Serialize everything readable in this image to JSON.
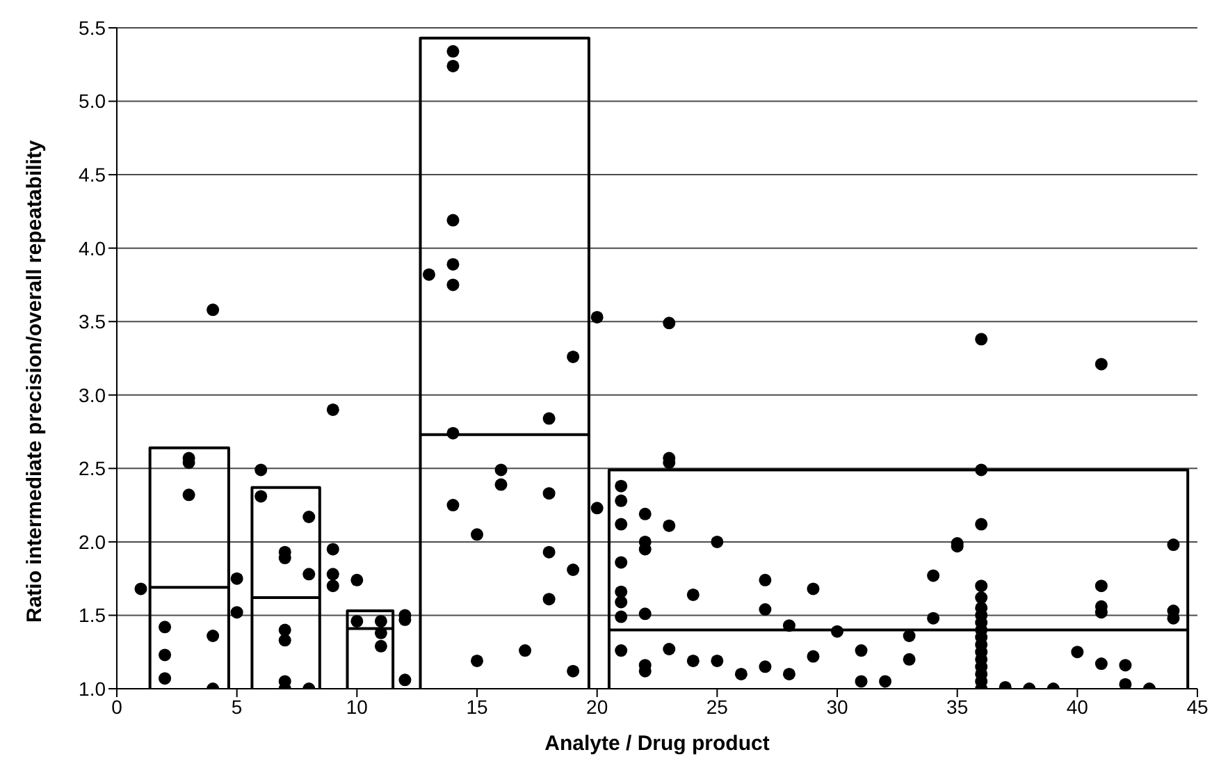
{
  "chart_data": {
    "type": "scatter",
    "xlabel": "Analyte / Drug product",
    "ylabel": "Ratio intermediate precision/overall repeatability",
    "xlim": [
      0,
      45
    ],
    "xticks": [
      0,
      5,
      10,
      15,
      20,
      25,
      30,
      35,
      40,
      45
    ],
    "ylim": [
      1.0,
      5.5
    ],
    "yticks": [
      {
        "value": 1.0,
        "label": "1.0"
      },
      {
        "value": 1.5,
        "label": "1.5"
      },
      {
        "value": 2.0,
        "label": "2.0"
      },
      {
        "value": 2.5,
        "label": "2.5"
      },
      {
        "value": 3.0,
        "label": "3.0"
      },
      {
        "value": 3.5,
        "label": "3.5"
      },
      {
        "value": 4.0,
        "label": "4.0"
      },
      {
        "value": 4.5,
        "label": "4.5"
      },
      {
        "value": 5.0,
        "label": "5.0"
      },
      {
        "value": 5.5,
        "label": "5.5"
      }
    ],
    "grid": "y",
    "series": [
      {
        "type": "scatter",
        "marker": "circle",
        "color": "#000000",
        "x": [
          1,
          2,
          2,
          2,
          3,
          3,
          3,
          4,
          4,
          4,
          5,
          5,
          6,
          6,
          7,
          7,
          7,
          7,
          7,
          7,
          8,
          8,
          8,
          9,
          9,
          9,
          9,
          10,
          10,
          11,
          11,
          11,
          12,
          12,
          12,
          13,
          14,
          14,
          14,
          14,
          14,
          14,
          14,
          15,
          15,
          16,
          16,
          17,
          18,
          18,
          18,
          18,
          19,
          19,
          19,
          20,
          20,
          21,
          21,
          21,
          21,
          21,
          21,
          21,
          21,
          22,
          22,
          22,
          22,
          22,
          22,
          23,
          23,
          23,
          23,
          23,
          24,
          24,
          25,
          25,
          26,
          27,
          27,
          27,
          28,
          28,
          29,
          29,
          30,
          31,
          31,
          32,
          33,
          33,
          34,
          34,
          35,
          35,
          36,
          36,
          36,
          36,
          36,
          36,
          36,
          36,
          36,
          36,
          36,
          36,
          36,
          36,
          36,
          36,
          36,
          37,
          38,
          39,
          40,
          41,
          41,
          41,
          41,
          41,
          42,
          42,
          43,
          44,
          44,
          44
        ],
        "values": [
          1.68,
          1.42,
          1.23,
          1.07,
          2.57,
          2.54,
          2.32,
          3.58,
          1.36,
          1.0,
          1.75,
          1.52,
          2.49,
          2.31,
          1.93,
          1.89,
          1.4,
          1.33,
          1.05,
          1.0,
          2.17,
          1.78,
          1.0,
          2.9,
          1.95,
          1.78,
          1.7,
          1.74,
          1.46,
          1.46,
          1.38,
          1.29,
          1.5,
          1.47,
          1.06,
          3.82,
          5.34,
          5.24,
          4.19,
          3.89,
          3.75,
          2.74,
          2.25,
          2.05,
          1.19,
          2.49,
          2.39,
          1.26,
          2.84,
          2.33,
          1.93,
          1.61,
          3.26,
          1.81,
          1.12,
          3.53,
          2.23,
          2.38,
          2.28,
          2.12,
          1.86,
          1.66,
          1.59,
          1.49,
          1.26,
          2.19,
          2.0,
          1.95,
          1.51,
          1.16,
          1.12,
          3.49,
          2.57,
          2.54,
          2.11,
          1.27,
          1.64,
          1.19,
          2.0,
          1.19,
          1.1,
          1.74,
          1.54,
          1.15,
          1.43,
          1.1,
          1.68,
          1.22,
          1.39,
          1.26,
          1.05,
          1.05,
          1.36,
          1.2,
          1.77,
          1.48,
          1.99,
          1.97,
          3.38,
          2.49,
          2.12,
          1.7,
          1.62,
          1.55,
          1.5,
          1.45,
          1.4,
          1.35,
          1.3,
          1.25,
          1.2,
          1.15,
          1.1,
          1.05,
          1.0,
          1.01,
          1.0,
          1.0,
          1.25,
          3.21,
          1.7,
          1.56,
          1.52,
          1.17,
          1.16,
          1.03,
          1.0,
          1.98,
          1.53,
          1.48
        ]
      },
      {
        "type": "line",
        "marker": "none",
        "color": "#000000",
        "x": [
          1.38,
          1.38,
          4.66,
          4.66
        ],
        "values": [
          1.0,
          2.64,
          2.64,
          1.0
        ]
      },
      {
        "type": "line",
        "marker": "none",
        "color": "#000000",
        "x": [
          1.38,
          4.66
        ],
        "values": [
          1.69,
          1.69
        ]
      },
      {
        "type": "line",
        "marker": "none",
        "color": "#000000",
        "x": [
          5.63,
          5.63,
          8.45,
          8.45
        ],
        "values": [
          1.0,
          2.37,
          2.37,
          1.0
        ]
      },
      {
        "type": "line",
        "marker": "none",
        "color": "#000000",
        "x": [
          5.63,
          8.45
        ],
        "values": [
          1.62,
          1.62
        ]
      },
      {
        "type": "line",
        "marker": "none",
        "color": "#000000",
        "x": [
          9.6,
          9.6,
          11.5,
          11.5
        ],
        "values": [
          1.0,
          1.53,
          1.53,
          1.0
        ]
      },
      {
        "type": "line",
        "marker": "none",
        "color": "#000000",
        "x": [
          9.6,
          11.5
        ],
        "values": [
          1.41,
          1.41
        ]
      },
      {
        "type": "line",
        "marker": "none",
        "color": "#000000",
        "x": [
          12.64,
          12.64,
          19.66,
          19.66
        ],
        "values": [
          1.0,
          5.43,
          5.43,
          1.0
        ]
      },
      {
        "type": "line",
        "marker": "none",
        "color": "#000000",
        "x": [
          12.64,
          19.66
        ],
        "values": [
          2.73,
          2.73
        ]
      },
      {
        "type": "line",
        "marker": "none",
        "color": "#000000",
        "x": [
          20.5,
          20.5,
          44.6,
          44.6
        ],
        "values": [
          1.0,
          2.49,
          2.49,
          1.0
        ]
      },
      {
        "type": "line",
        "marker": "none",
        "color": "#000000",
        "x": [
          20.5,
          44.6
        ],
        "values": [
          1.4,
          1.4
        ]
      }
    ]
  }
}
